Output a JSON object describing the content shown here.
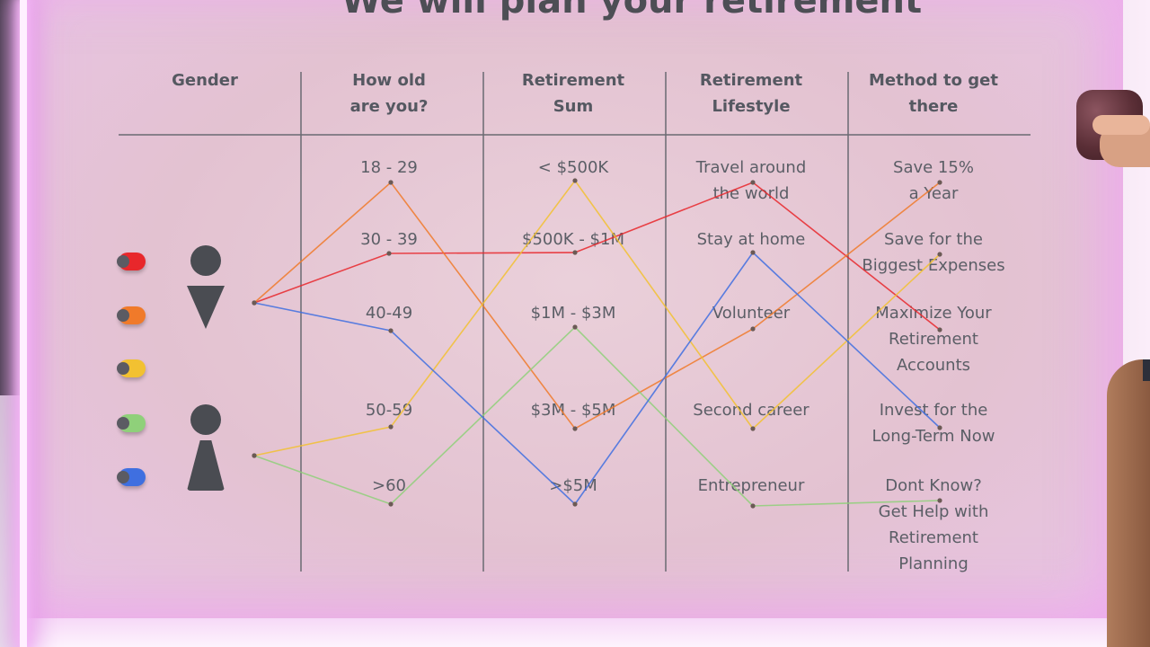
{
  "title": "We will plan your retirement",
  "headers": {
    "gender": [
      "Gender"
    ],
    "age": [
      "How old",
      "are you?"
    ],
    "sum": [
      "Retirement",
      "Sum"
    ],
    "lifestyle": [
      "Retirement",
      "Lifestyle"
    ],
    "method": [
      "Method to get",
      "there"
    ]
  },
  "age_options": [
    "18 - 29",
    "30 - 39",
    "40-49",
    "50-59",
    ">60"
  ],
  "sum_options": [
    "< $500K",
    "$500K - $1M",
    "$1M - $3M",
    "$3M - $5M",
    ">$5M"
  ],
  "lifestyle_options": [
    [
      "Travel around",
      "the world"
    ],
    [
      "Stay at home"
    ],
    [
      "Volunteer"
    ],
    [
      "Second career"
    ],
    [
      "Entrepreneur"
    ]
  ],
  "method_options": [
    [
      "Save 15%",
      "a Year"
    ],
    [
      "Save for the",
      "Biggest Expenses"
    ],
    [
      "Maximize Your",
      "Retirement",
      "Accounts"
    ],
    [
      "Invest for the",
      "Long-Term Now"
    ],
    [
      "Dont Know?",
      "Get Help with",
      "Retirement",
      "Planning"
    ]
  ],
  "genders": [
    "female-icon",
    "male-icon"
  ],
  "pins": [
    {
      "color": "#e8272b"
    },
    {
      "color": "#f07a2a"
    },
    {
      "color": "#f2c131"
    },
    {
      "color": "#8fd07a"
    },
    {
      "color": "#3f6fe0"
    }
  ],
  "strings": [
    {
      "color": "#e8272b",
      "gender": "female",
      "path": [
        "30 - 39",
        "$500K - $1M",
        "Travel around the world",
        "Maximize Your Retirement Accounts"
      ]
    },
    {
      "color": "#f07a2a",
      "gender": "female",
      "path": [
        "18 - 29",
        "$3M - $5M",
        "Volunteer",
        "Save 15% a Year"
      ]
    },
    {
      "color": "#f2c131",
      "gender": "male",
      "path": [
        "50-59",
        "< $500K",
        "Second career",
        "Save for the Biggest Expenses"
      ]
    },
    {
      "color": "#8fd07a",
      "gender": "male",
      "path": [
        ">60",
        "$1M - $3M",
        "Entrepreneur",
        "Dont Know? Get Help with Retirement Planning"
      ]
    },
    {
      "color": "#3f6fe0",
      "gender": "female",
      "path": [
        "40-49",
        ">$5M",
        "Stay at home",
        "Invest for the Long-Term Now"
      ]
    }
  ]
}
